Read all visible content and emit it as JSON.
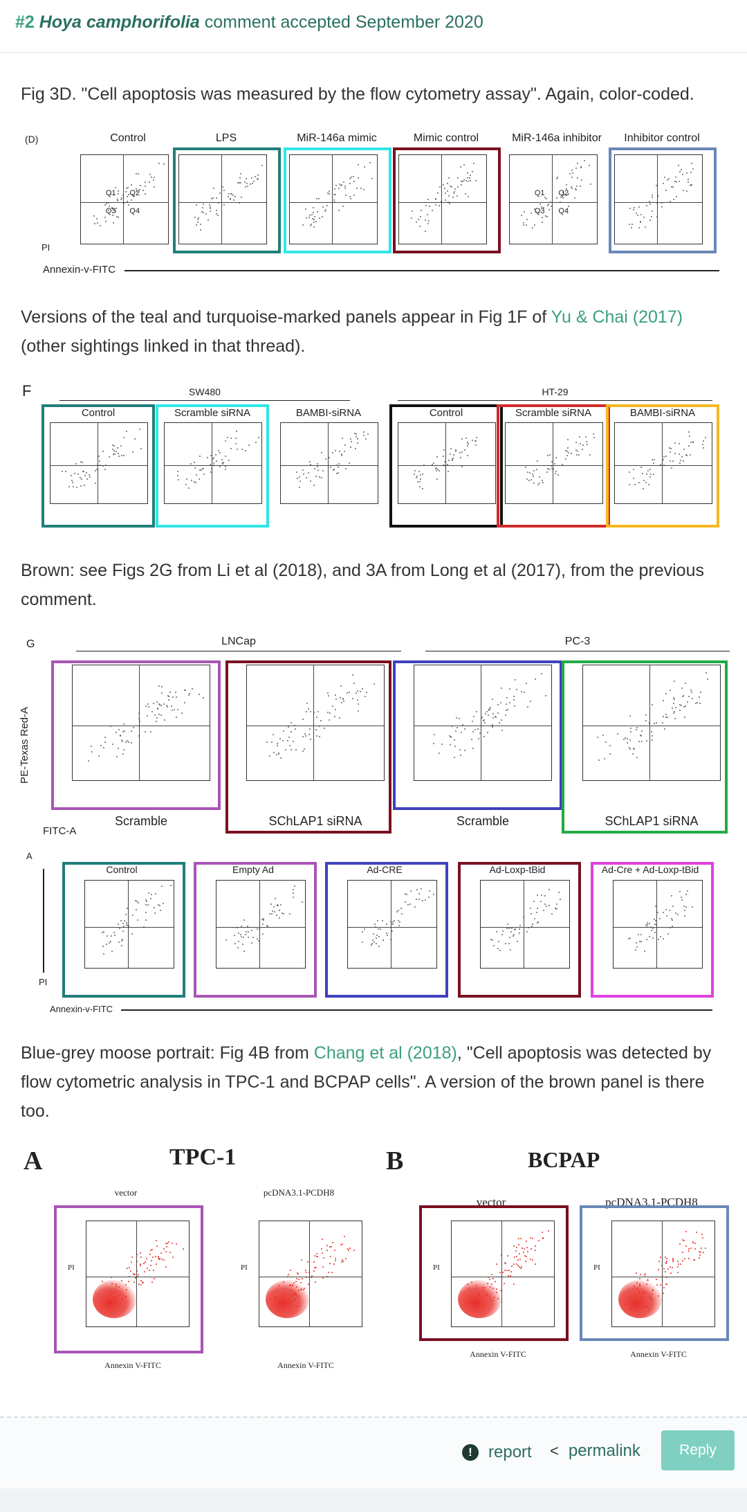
{
  "header": {
    "number": "#2",
    "species": "Hoya camphorifolia",
    "rest": "comment accepted September 2020"
  },
  "para1": "Fig 3D. \"Cell apoptosis was measured by the flow cytometry assay\". Again, color-coded.",
  "para2": {
    "before": "Versions of the teal and turquoise-marked panels appear in Fig 1F of ",
    "link": "Yu & Chai (2017)",
    "after": " (other sightings linked in that thread)."
  },
  "para3": "Brown: see Figs 2G from Li et al (2018), and 3A from Long et al (2017), from the previous comment.",
  "para4": {
    "before": "Blue-grey moose portrait: Fig 4B from ",
    "link": "Chang et al (2018)",
    "after": ", \"Cell apoptosis was detected by flow cytometric analysis in TPC-1 and BCPAP cells\". A version of the brown panel is there too."
  },
  "fig1": {
    "letter": "(D)",
    "titles": [
      "Control",
      "LPS",
      "MiR-146a mimic",
      "Mimic control",
      "MiR-146a inhibitor",
      "Inhibitor control"
    ],
    "ylabel": "PI",
    "xlabel": "Annexin-v-FITC",
    "quadrants": [
      "Q1",
      "Q2",
      "Q3",
      "Q4"
    ]
  },
  "fig2": {
    "letter": "F",
    "group1": "SW480",
    "group2": "HT-29",
    "titles": [
      "Control",
      "Scramble siRNA",
      "BAMBI-siRNA",
      "Control",
      "Scramble siRNA",
      "BAMBI-siRNA"
    ]
  },
  "fig3": {
    "letter": "G",
    "group1": "LNCap",
    "group2": "PC-3",
    "bottoms": [
      "Scramble",
      "SChLAP1 siRNA",
      "Scramble",
      "SChLAP1 siRNA"
    ],
    "ylabel": "PE-Texas Red-A",
    "xlabel": "FITC-A"
  },
  "fig4": {
    "letter": "A",
    "titles": [
      "Control",
      "Empty Ad",
      "Ad-CRE",
      "Ad-Loxp-tBid",
      "Ad-Cre + Ad-Loxp-tBid"
    ],
    "ylabel": "PI",
    "xlabel": "Annexin-v-FITC"
  },
  "fig5": {
    "letterA": "A",
    "letterB": "B",
    "groupA": "TPC-1",
    "groupB": "BCPAP",
    "titles": [
      "vector",
      "pcDNA3.1-PCDH8",
      "vector",
      "pcDNA3.1-PCDH8"
    ],
    "ylabel": "PI",
    "xlabel": "Annexin V-FITC"
  },
  "footer": {
    "report": "report",
    "permalink": "permalink",
    "reply": "Reply"
  },
  "colors": {
    "teal": "#1f7f7a",
    "turquoise": "#2fe6e6",
    "brown": "#7a1020",
    "slate": "#6a88b8",
    "purple": "#a855b5",
    "blue": "#4040c0",
    "green": "#22aa44",
    "orange": "#f5b820",
    "red": "#d42a2a",
    "magenta": "#e040e0",
    "black": "#111111"
  }
}
